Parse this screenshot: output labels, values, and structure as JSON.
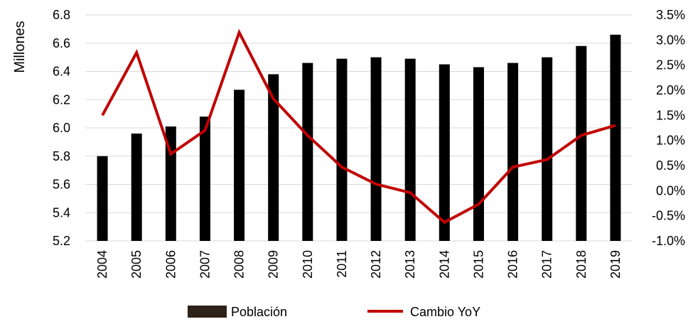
{
  "chart_data": {
    "type": "bar",
    "title": "",
    "xlabel": "",
    "ylabel": "Millones",
    "y2label": "",
    "categories": [
      "2004",
      "2005",
      "2006",
      "2007",
      "2008",
      "2009",
      "2010",
      "2011",
      "2012",
      "2013",
      "2014",
      "2015",
      "2016",
      "2017",
      "2018",
      "2019"
    ],
    "ylim": [
      5.2,
      6.8
    ],
    "yticks": [
      5.2,
      5.4,
      5.6,
      5.8,
      6.0,
      6.2,
      6.4,
      6.6,
      6.8
    ],
    "ytick_labels": [
      "5.2",
      "5.4",
      "5.6",
      "5.8",
      "6.0",
      "6.2",
      "6.4",
      "6.6",
      "6.8"
    ],
    "y2lim": [
      -1.0,
      3.5
    ],
    "y2ticks": [
      -1.0,
      -0.5,
      0.0,
      0.5,
      1.0,
      1.5,
      2.0,
      2.5,
      3.0,
      3.5
    ],
    "y2tick_labels": [
      "-1.0%",
      "-0.5%",
      "0.0%",
      "0.5%",
      "1.0%",
      "1.5%",
      "2.0%",
      "2.5%",
      "3.0%",
      "3.5%"
    ],
    "grid": "horizontal",
    "legend_position": "bottom",
    "series": [
      {
        "name": "Población",
        "type": "bar",
        "axis": "left",
        "color": "#000000",
        "legend_color": "#2e2218",
        "values": [
          5.8,
          5.96,
          6.01,
          6.08,
          6.27,
          6.38,
          6.46,
          6.49,
          6.5,
          6.49,
          6.45,
          6.43,
          6.46,
          6.5,
          6.58,
          6.66
        ]
      },
      {
        "name": "Cambio YoY",
        "type": "line",
        "axis": "right",
        "color": "#c00000",
        "values": [
          1.5,
          2.75,
          0.73,
          1.2,
          3.15,
          1.83,
          1.1,
          0.47,
          0.13,
          -0.04,
          -0.63,
          -0.27,
          0.47,
          0.62,
          1.1,
          1.3
        ]
      }
    ]
  }
}
